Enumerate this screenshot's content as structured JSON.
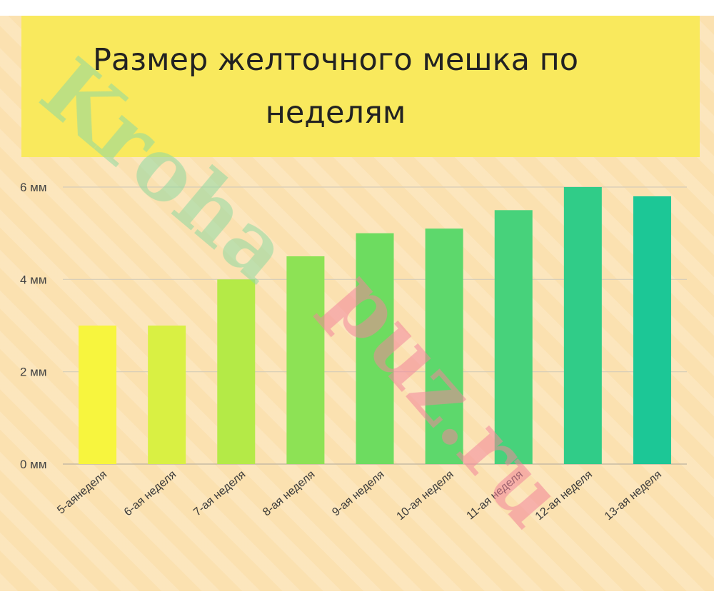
{
  "chart_data": {
    "type": "bar",
    "title": "Размер желточного мешка по неделям",
    "xlabel": "",
    "ylabel": "",
    "categories": [
      "5-аянеделя",
      "6-ая неделя",
      "7-ая неделя",
      "8-ая неделя",
      "9-ая неделя",
      "10-ая неделя",
      "11-ая неделя",
      "12-ая неделя",
      "13-ая неделя"
    ],
    "values": [
      3,
      3,
      4,
      4.5,
      5,
      5.1,
      5.5,
      6,
      5.8
    ],
    "ylim": [
      0,
      6
    ],
    "y_ticks": [
      {
        "value": 0,
        "label": "0 мм"
      },
      {
        "value": 2,
        "label": "2 мм"
      },
      {
        "value": 4,
        "label": "4 мм"
      },
      {
        "value": 6,
        "label": "6 мм"
      }
    ],
    "bar_colors": [
      "#f7f53e",
      "#d9f043",
      "#b4ea47",
      "#8de255",
      "#6ddc60",
      "#5dd86c",
      "#47d27b",
      "#30cc88",
      "#1cc796"
    ],
    "grid": true,
    "legend": "none"
  },
  "watermark": {
    "text_left": "Kroha",
    "text_right": "puz.ru",
    "color_left": "#8fd9a0",
    "color_right": "#f2869c"
  }
}
